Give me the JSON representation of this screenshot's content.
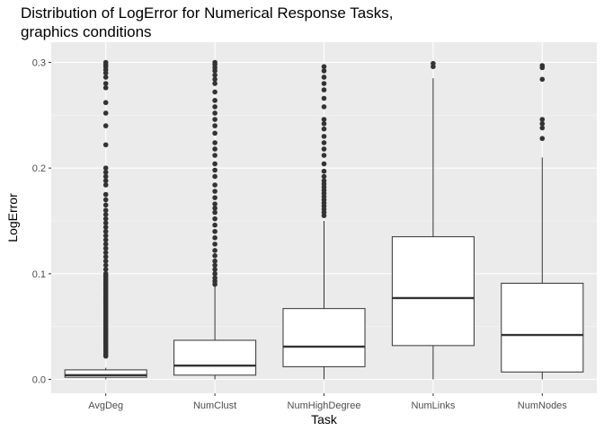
{
  "chart_data": {
    "type": "box",
    "title_line1": "Distribution of LogError for Numerical Response Tasks,",
    "title_line2": "graphics conditions",
    "xlabel": "Task",
    "ylabel": "LogError",
    "ylim": [
      -0.008,
      0.31
    ],
    "yticks": [
      0.0,
      0.1,
      0.2,
      0.3
    ],
    "ytick_labels": [
      "0.0",
      "0.1",
      "0.2",
      "0.3"
    ],
    "categories": [
      "AvgDeg",
      "NumClust",
      "NumHighDegree",
      "NumLinks",
      "NumNodes"
    ],
    "grid": true,
    "boxes": [
      {
        "category": "AvgDeg",
        "whisker_low": 0.0,
        "q1": 0.002,
        "median": 0.004,
        "q3": 0.009,
        "whisker_high": 0.011,
        "outliers": [
          0.022,
          0.024,
          0.026,
          0.028,
          0.03,
          0.032,
          0.034,
          0.036,
          0.038,
          0.04,
          0.042,
          0.044,
          0.046,
          0.048,
          0.05,
          0.052,
          0.054,
          0.056,
          0.058,
          0.06,
          0.062,
          0.064,
          0.066,
          0.068,
          0.07,
          0.072,
          0.074,
          0.076,
          0.078,
          0.08,
          0.082,
          0.084,
          0.086,
          0.088,
          0.09,
          0.092,
          0.094,
          0.096,
          0.098,
          0.1,
          0.104,
          0.108,
          0.112,
          0.116,
          0.12,
          0.124,
          0.128,
          0.132,
          0.136,
          0.14,
          0.144,
          0.148,
          0.152,
          0.156,
          0.16,
          0.165,
          0.17,
          0.175,
          0.184,
          0.188,
          0.192,
          0.196,
          0.2,
          0.222,
          0.24,
          0.252,
          0.262,
          0.276,
          0.28,
          0.286,
          0.29,
          0.293,
          0.296,
          0.298,
          0.3
        ]
      },
      {
        "category": "NumClust",
        "whisker_low": 0.0,
        "q1": 0.004,
        "median": 0.013,
        "q3": 0.037,
        "whisker_high": 0.088,
        "outliers": [
          0.09,
          0.093,
          0.096,
          0.1,
          0.104,
          0.108,
          0.112,
          0.117,
          0.122,
          0.128,
          0.134,
          0.14,
          0.146,
          0.152,
          0.158,
          0.162,
          0.166,
          0.172,
          0.178,
          0.184,
          0.192,
          0.198,
          0.204,
          0.212,
          0.218,
          0.224,
          0.233,
          0.24,
          0.246,
          0.252,
          0.258,
          0.264,
          0.272,
          0.28,
          0.284,
          0.288,
          0.292,
          0.295,
          0.298,
          0.3
        ]
      },
      {
        "category": "NumHighDegree",
        "whisker_low": 0.0,
        "q1": 0.012,
        "median": 0.031,
        "q3": 0.067,
        "whisker_high": 0.15,
        "outliers": [
          0.155,
          0.158,
          0.161,
          0.164,
          0.167,
          0.17,
          0.173,
          0.176,
          0.179,
          0.182,
          0.185,
          0.188,
          0.192,
          0.197,
          0.204,
          0.212,
          0.218,
          0.224,
          0.23,
          0.237,
          0.242,
          0.246,
          0.258,
          0.266,
          0.274,
          0.28,
          0.286,
          0.292,
          0.296
        ]
      },
      {
        "category": "NumLinks",
        "whisker_low": 0.0,
        "q1": 0.032,
        "median": 0.077,
        "q3": 0.135,
        "whisker_high": 0.285,
        "outliers": [
          0.296,
          0.299
        ]
      },
      {
        "category": "NumNodes",
        "whisker_low": 0.0,
        "q1": 0.007,
        "median": 0.042,
        "q3": 0.091,
        "whisker_high": 0.21,
        "outliers": [
          0.228,
          0.238,
          0.242,
          0.246,
          0.284,
          0.295,
          0.297
        ]
      }
    ]
  }
}
